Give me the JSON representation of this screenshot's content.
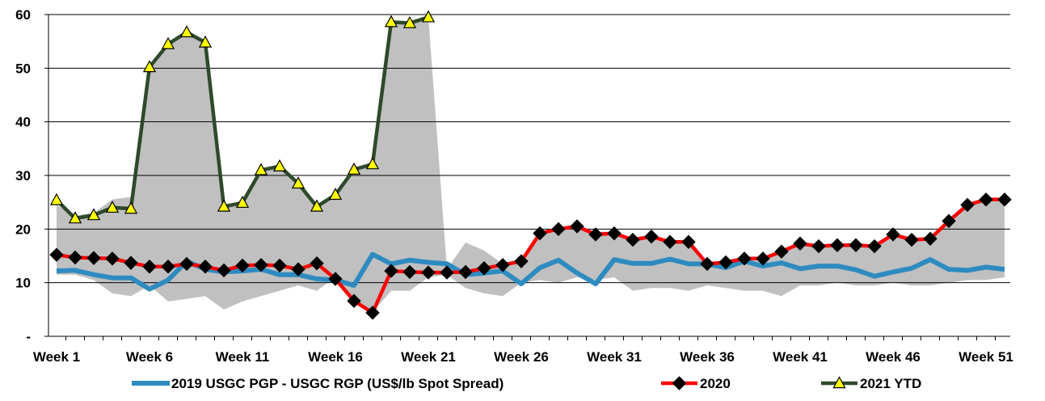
{
  "chart_data": {
    "type": "line",
    "ylim": [
      0,
      60
    ],
    "yticks": [
      0,
      10,
      20,
      30,
      40,
      50,
      60
    ],
    "ytick_labels": [
      "-",
      "10",
      "20",
      "30",
      "40",
      "50",
      "60"
    ],
    "x_tick_labels": [
      {
        "week": 1,
        "label": "Week 1"
      },
      {
        "week": 6,
        "label": "Week 6"
      },
      {
        "week": 11,
        "label": "Week 11"
      },
      {
        "week": 16,
        "label": "Week 16"
      },
      {
        "week": 21,
        "label": "Week 21"
      },
      {
        "week": 26,
        "label": "Week 26"
      },
      {
        "week": 31,
        "label": "Week 31"
      },
      {
        "week": 36,
        "label": "Week 36"
      },
      {
        "week": 41,
        "label": "Week 41"
      },
      {
        "week": 46,
        "label": "Week 46"
      },
      {
        "week": 51,
        "label": "Week 51"
      }
    ],
    "grid": true,
    "legend_position": "bottom",
    "range_band": {
      "color": "#c0c0c0",
      "upper": [
        24.5,
        22.5,
        23.0,
        25.5,
        26.0,
        50.0,
        54.5,
        56.5,
        54.5,
        24.0,
        25.0,
        30.8,
        31.5,
        28.5,
        24.0,
        26.5,
        31.0,
        32.0,
        58.5,
        58.5,
        59.5,
        12.5,
        17.5,
        16.0,
        13.5,
        14.5,
        19.5,
        20.0,
        20.5,
        19.5,
        19.5,
        18.0,
        18.5,
        17.5,
        17.5,
        13.5,
        14.0,
        14.5,
        14.5,
        15.5,
        17.5,
        16.5,
        17.0,
        17.0,
        17.0,
        19.0,
        18.0,
        18.0,
        21.5,
        24.5,
        25.5,
        25.5
      ],
      "lower": [
        11.5,
        11.5,
        10.5,
        8.0,
        7.5,
        9.5,
        6.5,
        7.0,
        7.5,
        5.0,
        6.5,
        7.5,
        8.5,
        9.5,
        8.5,
        11.0,
        6.5,
        4.5,
        8.5,
        8.5,
        11.0,
        11.5,
        9.0,
        8.0,
        7.5,
        10.0,
        10.5,
        10.0,
        11.0,
        10.5,
        11.0,
        8.5,
        9.0,
        9.0,
        8.5,
        9.5,
        9.0,
        8.5,
        8.5,
        7.5,
        9.5,
        9.5,
        10.0,
        9.5,
        9.5,
        10.0,
        9.5,
        9.5,
        10.0,
        10.5,
        10.5,
        11.0
      ]
    },
    "series": [
      {
        "name": "2019 USGC PGP - USGC RGP (US$/lb Spot Spread)",
        "color": "#2e8bc0",
        "marker": "none",
        "x_start": 1,
        "values": [
          12.2,
          12.3,
          11.5,
          10.9,
          10.9,
          8.8,
          10.5,
          14.0,
          12.5,
          12.0,
          12.2,
          12.5,
          11.5,
          11.5,
          10.7,
          10.5,
          9.5,
          15.3,
          13.5,
          14.2,
          13.8,
          13.5,
          11.5,
          11.8,
          12.2,
          9.8,
          12.8,
          14.2,
          11.8,
          9.8,
          14.3,
          13.6,
          13.6,
          14.4,
          13.5,
          13.5,
          12.8,
          14.0,
          13.1,
          13.7,
          12.6,
          13.1,
          13.1,
          12.4,
          11.2,
          12.0,
          12.7,
          14.3,
          12.5,
          12.3,
          12.9,
          12.5
        ]
      },
      {
        "name": "2020",
        "color": "#ff0000",
        "marker": "diamond",
        "x_start": 1,
        "values": [
          15.2,
          14.7,
          14.6,
          14.5,
          13.7,
          13.0,
          13.0,
          13.5,
          13.0,
          12.3,
          13.2,
          13.3,
          13.2,
          12.5,
          13.6,
          10.7,
          6.6,
          4.4,
          12.2,
          12.0,
          11.9,
          11.9,
          12.0,
          12.7,
          13.3,
          14.0,
          19.2,
          20.0,
          20.5,
          19.0,
          19.2,
          18.0,
          18.6,
          17.6,
          17.6,
          13.5,
          13.8,
          14.5,
          14.5,
          15.8,
          17.3,
          16.8,
          17.0,
          17.0,
          16.8,
          19.0,
          18.0,
          18.2,
          21.5,
          24.5,
          25.5,
          25.5
        ]
      },
      {
        "name": "2021 YTD",
        "color": "#2d4a2a",
        "marker": "triangle",
        "x_start": 1,
        "values": [
          25.4,
          22.0,
          22.6,
          24.0,
          23.8,
          50.2,
          54.5,
          56.7,
          54.8,
          24.2,
          24.9,
          31.0,
          31.7,
          28.5,
          24.2,
          26.4,
          31.1,
          32.1,
          58.6,
          58.4,
          59.5
        ]
      }
    ]
  }
}
